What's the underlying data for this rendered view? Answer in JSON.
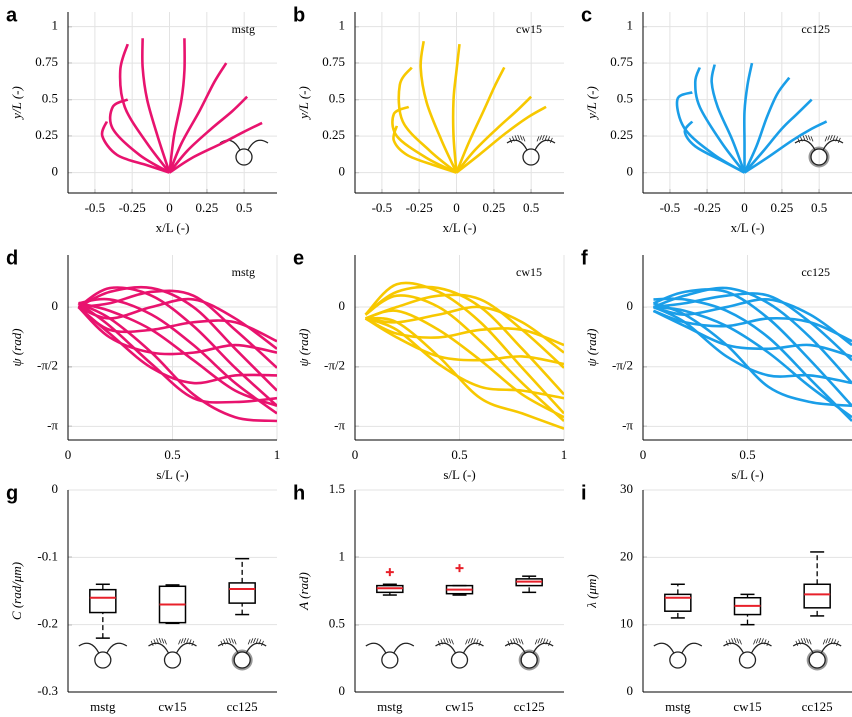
{
  "chart_data": [
    {
      "type": "line",
      "panel_label": "a",
      "annotation": "mstg",
      "xlabel": "x/L (-)",
      "ylabel": "y/L (-)",
      "color": "#e8136e",
      "xlim": [
        -0.68,
        0.72
      ],
      "ylim": [
        -0.14,
        1.1
      ],
      "xticks": [
        -0.5,
        -0.25,
        0,
        0.25,
        0.5
      ],
      "yticks": [
        0,
        0.25,
        0.5,
        0.75,
        1
      ],
      "grid": true,
      "series": [
        {
          "x": [
            0,
            -0.2,
            -0.38,
            -0.38,
            -0.28
          ],
          "values": [
            0,
            0.12,
            0.3,
            0.45,
            0.5
          ]
        },
        {
          "x": [
            0,
            -0.15,
            -0.3,
            -0.33,
            -0.28
          ],
          "values": [
            0,
            0.2,
            0.45,
            0.7,
            0.88
          ]
        },
        {
          "x": [
            0,
            -0.08,
            -0.15,
            -0.18,
            -0.18
          ],
          "values": [
            0,
            0.25,
            0.5,
            0.72,
            0.92
          ]
        },
        {
          "x": [
            0,
            0.03,
            0.08,
            0.1,
            0.1
          ],
          "values": [
            0,
            0.25,
            0.5,
            0.7,
            0.92
          ]
        },
        {
          "x": [
            0,
            0.08,
            0.2,
            0.3,
            0.38
          ],
          "values": [
            0,
            0.2,
            0.42,
            0.62,
            0.75
          ]
        },
        {
          "x": [
            0,
            0.12,
            0.28,
            0.42,
            0.52
          ],
          "values": [
            0,
            0.15,
            0.3,
            0.42,
            0.52
          ]
        },
        {
          "x": [
            0,
            0.15,
            0.35,
            0.5,
            0.62
          ],
          "values": [
            0,
            0.1,
            0.2,
            0.28,
            0.34
          ]
        },
        {
          "x": [
            0,
            -0.15,
            -0.35,
            -0.45,
            -0.42
          ],
          "values": [
            0,
            0.05,
            0.12,
            0.25,
            0.35
          ]
        }
      ]
    },
    {
      "type": "line",
      "panel_label": "b",
      "annotation": "cw15",
      "xlabel": "x/L (-)",
      "ylabel": "y/L (-)",
      "color": "#f7c800",
      "xlim": [
        -0.68,
        0.72
      ],
      "ylim": [
        -0.14,
        1.1
      ],
      "xticks": [
        -0.5,
        -0.25,
        0,
        0.25,
        0.5
      ],
      "yticks": [
        0,
        0.25,
        0.5,
        0.75,
        1
      ],
      "grid": true,
      "series": [
        {
          "x": [
            0,
            -0.2,
            -0.4,
            -0.42,
            -0.32
          ],
          "values": [
            0,
            0.1,
            0.25,
            0.4,
            0.45
          ]
        },
        {
          "x": [
            0,
            -0.18,
            -0.36,
            -0.38,
            -0.3
          ],
          "values": [
            0,
            0.15,
            0.35,
            0.6,
            0.72
          ]
        },
        {
          "x": [
            0,
            -0.1,
            -0.2,
            -0.24,
            -0.22
          ],
          "values": [
            0,
            0.22,
            0.48,
            0.72,
            0.9
          ]
        },
        {
          "x": [
            0,
            -0.02,
            -0.02,
            0,
            0.02
          ],
          "values": [
            0,
            0.25,
            0.5,
            0.7,
            0.88
          ]
        },
        {
          "x": [
            0,
            0.08,
            0.18,
            0.26,
            0.32
          ],
          "values": [
            0,
            0.2,
            0.42,
            0.6,
            0.72
          ]
        },
        {
          "x": [
            0,
            0.12,
            0.27,
            0.4,
            0.5
          ],
          "values": [
            0,
            0.15,
            0.3,
            0.42,
            0.52
          ]
        },
        {
          "x": [
            0,
            0.15,
            0.33,
            0.48,
            0.6
          ],
          "values": [
            0,
            0.12,
            0.27,
            0.38,
            0.45
          ]
        },
        {
          "x": [
            0,
            -0.15,
            -0.33,
            -0.42,
            -0.4
          ],
          "values": [
            0,
            0.05,
            0.12,
            0.22,
            0.32
          ]
        }
      ]
    },
    {
      "type": "line",
      "panel_label": "c",
      "annotation": "cc125",
      "xlabel": "x/L (-)",
      "ylabel": "y/L (-)",
      "color": "#1a9ee8",
      "xlim": [
        -0.68,
        0.72
      ],
      "ylim": [
        -0.14,
        1.1
      ],
      "xticks": [
        -0.5,
        -0.25,
        0,
        0.25,
        0.5
      ],
      "yticks": [
        0,
        0.25,
        0.5,
        0.75,
        1
      ],
      "grid": true,
      "series": [
        {
          "x": [
            0,
            -0.2,
            -0.4,
            -0.45,
            -0.35
          ],
          "values": [
            0,
            0.12,
            0.3,
            0.5,
            0.55
          ]
        },
        {
          "x": [
            0,
            -0.15,
            -0.3,
            -0.33,
            -0.3
          ],
          "values": [
            0,
            0.2,
            0.45,
            0.62,
            0.72
          ]
        },
        {
          "x": [
            0,
            -0.08,
            -0.18,
            -0.22,
            -0.2
          ],
          "values": [
            0,
            0.22,
            0.45,
            0.62,
            0.74
          ]
        },
        {
          "x": [
            0,
            0,
            0,
            0.02,
            0.05
          ],
          "values": [
            0,
            0.2,
            0.42,
            0.6,
            0.75
          ]
        },
        {
          "x": [
            0,
            0.08,
            0.15,
            0.22,
            0.3
          ],
          "values": [
            0,
            0.18,
            0.38,
            0.54,
            0.65
          ]
        },
        {
          "x": [
            0,
            0.12,
            0.25,
            0.35,
            0.45
          ],
          "values": [
            0,
            0.14,
            0.3,
            0.4,
            0.5
          ]
        },
        {
          "x": [
            0,
            0.15,
            0.32,
            0.45,
            0.55
          ],
          "values": [
            0,
            0.1,
            0.22,
            0.3,
            0.35
          ]
        },
        {
          "x": [
            0,
            -0.15,
            -0.33,
            -0.4,
            -0.35
          ],
          "values": [
            0,
            0.08,
            0.18,
            0.28,
            0.35
          ]
        }
      ]
    },
    {
      "type": "line",
      "panel_label": "d",
      "annotation": "mstg",
      "xlabel": "s/L (-)",
      "ylabel": "ψ (rad)",
      "color": "#e8136e",
      "xlim": [
        0,
        1
      ],
      "ylim": [
        -3.5,
        1.37
      ],
      "xticks": [
        0,
        0.5,
        1
      ],
      "yticks": [
        {
          "value": -3.1416,
          "label": "-π"
        },
        {
          "value": -1.5708,
          "label": "-π/2"
        },
        0
      ],
      "grid": true,
      "x": [
        0.05,
        0.2,
        0.4,
        0.6,
        0.8,
        1
      ],
      "series": [
        {
          "values": [
            0.1,
            -0.1,
            -0.6,
            -1.4,
            -2.2,
            -2.6
          ]
        },
        {
          "values": [
            0.1,
            0.2,
            -0.2,
            -1.0,
            -2.0,
            -2.8
          ]
        },
        {
          "values": [
            0,
            0.5,
            0.3,
            -0.5,
            -1.6,
            -2.6
          ]
        },
        {
          "values": [
            0,
            0.4,
            0.5,
            0,
            -1.1,
            -2.2
          ]
        },
        {
          "values": [
            0,
            0.1,
            0.4,
            0.3,
            -0.6,
            -1.6
          ]
        },
        {
          "values": [
            0,
            -0.3,
            0,
            0.2,
            -0.3,
            -1.1
          ]
        },
        {
          "values": [
            0,
            -0.6,
            -0.6,
            -0.4,
            -0.4,
            -0.9
          ]
        },
        {
          "values": [
            0,
            -0.8,
            -1.2,
            -1.2,
            -1.0,
            -1.2
          ]
        },
        {
          "values": [
            0,
            -0.7,
            -1.6,
            -2.0,
            -1.8,
            -1.8
          ]
        },
        {
          "values": [
            0.1,
            -0.5,
            -1.5,
            -2.4,
            -2.5,
            -2.4
          ]
        },
        {
          "values": [
            0.1,
            -0.3,
            -1.2,
            -2.3,
            -2.9,
            -3.0
          ]
        }
      ]
    },
    {
      "type": "line",
      "panel_label": "e",
      "annotation": "cw15",
      "xlabel": "s/L (-)",
      "ylabel": "ψ (rad)",
      "color": "#f7c800",
      "xlim": [
        0,
        1
      ],
      "ylim": [
        -3.5,
        1.37
      ],
      "xticks": [
        0,
        0.5,
        1
      ],
      "yticks": [
        {
          "value": -3.1416,
          "label": "-π"
        },
        {
          "value": -1.5708,
          "label": "-π/2"
        },
        0
      ],
      "grid": true,
      "x": [
        0.05,
        0.2,
        0.4,
        0.6,
        0.8,
        1
      ],
      "series": [
        {
          "values": [
            -0.3,
            -0.1,
            -0.6,
            -1.4,
            -2.3,
            -2.9
          ]
        },
        {
          "values": [
            -0.2,
            0.3,
            0,
            -0.9,
            -2.0,
            -3.0
          ]
        },
        {
          "values": [
            -0.2,
            0.6,
            0.4,
            -0.4,
            -1.6,
            -2.8
          ]
        },
        {
          "values": [
            -0.2,
            0.4,
            0.5,
            0,
            -1.1,
            -2.3
          ]
        },
        {
          "values": [
            -0.3,
            0,
            0.3,
            0.2,
            -0.6,
            -1.6
          ]
        },
        {
          "values": [
            -0.3,
            -0.4,
            -0.2,
            0,
            -0.4,
            -1.2
          ]
        },
        {
          "values": [
            -0.3,
            -0.7,
            -0.8,
            -0.6,
            -0.6,
            -1.0
          ]
        },
        {
          "values": [
            -0.3,
            -0.8,
            -1.3,
            -1.4,
            -1.3,
            -1.5
          ]
        },
        {
          "values": [
            -0.3,
            -0.6,
            -1.5,
            -2.1,
            -2.2,
            -2.4
          ]
        },
        {
          "values": [
            -0.3,
            -0.4,
            -1.3,
            -2.4,
            -2.8,
            -3.2
          ]
        }
      ]
    },
    {
      "type": "line",
      "panel_label": "f",
      "annotation": "cc125",
      "xlabel": "s/L (-)",
      "ylabel": "ψ (rad)",
      "color": "#1a9ee8",
      "xlim": [
        0,
        1
      ],
      "ylim": [
        -3.5,
        1.37
      ],
      "xticks": [
        0,
        0.5
      ],
      "yticks": [
        {
          "value": -3.1416,
          "label": "-π"
        },
        {
          "value": -1.5708,
          "label": "-π/2"
        },
        0
      ],
      "grid": true,
      "x": [
        0.05,
        0.2,
        0.4,
        0.6,
        0.8,
        1
      ],
      "series": [
        {
          "values": [
            0,
            -0.1,
            -0.5,
            -1.2,
            -2.1,
            -2.9
          ]
        },
        {
          "values": [
            0.2,
            0.2,
            -0.1,
            -0.8,
            -1.9,
            -3.0
          ]
        },
        {
          "values": [
            0.1,
            0.4,
            0.4,
            -0.3,
            -1.4,
            -2.6
          ]
        },
        {
          "values": [
            0,
            0.3,
            0.5,
            0.1,
            -0.8,
            -2.0
          ]
        },
        {
          "values": [
            0,
            0.1,
            0.3,
            0.3,
            -0.4,
            -1.4
          ]
        },
        {
          "values": [
            0,
            -0.2,
            0,
            0.2,
            -0.2,
            -1.0
          ]
        },
        {
          "values": [
            -0.1,
            -0.4,
            -0.5,
            -0.3,
            -0.4,
            -0.9
          ]
        },
        {
          "values": [
            -0.1,
            -0.5,
            -1.0,
            -1.1,
            -1.0,
            -1.3
          ]
        },
        {
          "values": [
            0,
            -0.4,
            -1.3,
            -1.8,
            -1.8,
            -2.0
          ]
        },
        {
          "values": [
            0.1,
            -0.2,
            -1.0,
            -2.1,
            -2.5,
            -2.6
          ]
        }
      ]
    },
    {
      "type": "box",
      "panel_label": "g",
      "ylabel": "C (rad/μm)",
      "color": "#000000",
      "median_color": "#e8202a",
      "ylim": [
        -0.3,
        0
      ],
      "yticks": [
        -0.3,
        -0.2,
        -0.1,
        0
      ],
      "grid": true,
      "categories": [
        "mstg",
        "cw15",
        "cc125"
      ],
      "boxes": [
        {
          "whislo": -0.22,
          "q1": -0.182,
          "med": -0.16,
          "q3": -0.148,
          "whishi": -0.14
        },
        {
          "whislo": -0.198,
          "q1": -0.197,
          "med": -0.17,
          "q3": -0.143,
          "whishi": -0.141
        },
        {
          "whislo": -0.185,
          "q1": -0.168,
          "med": -0.147,
          "q3": -0.138,
          "whishi": -0.102
        }
      ]
    },
    {
      "type": "box",
      "panel_label": "h",
      "ylabel": "A (rad)",
      "color": "#000000",
      "median_color": "#e8202a",
      "ylim": [
        0,
        1.5
      ],
      "yticks": [
        0,
        0.5,
        1,
        1.5
      ],
      "grid": true,
      "categories": [
        "mstg",
        "cw15",
        "cc125"
      ],
      "boxes": [
        {
          "whislo": 0.72,
          "q1": 0.74,
          "med": 0.77,
          "q3": 0.79,
          "whishi": 0.8,
          "fliers": [
            0.89
          ]
        },
        {
          "whislo": 0.72,
          "q1": 0.73,
          "med": 0.76,
          "q3": 0.79,
          "whishi": 0.79,
          "fliers": [
            0.92
          ]
        },
        {
          "whislo": 0.74,
          "q1": 0.79,
          "med": 0.82,
          "q3": 0.84,
          "whishi": 0.86
        }
      ]
    },
    {
      "type": "box",
      "panel_label": "i",
      "ylabel": "λ (μm)",
      "color": "#000000",
      "median_color": "#e8202a",
      "ylim": [
        0,
        30
      ],
      "yticks": [
        0,
        10,
        20,
        30
      ],
      "grid": true,
      "categories": [
        "mstg",
        "cw15",
        "cc125"
      ],
      "boxes": [
        {
          "whislo": 11,
          "q1": 12,
          "med": 14,
          "q3": 14.5,
          "whishi": 16
        },
        {
          "whislo": 10,
          "q1": 11.5,
          "med": 12.8,
          "q3": 14,
          "whishi": 14.5
        },
        {
          "whislo": 11.3,
          "q1": 12.5,
          "med": 14.5,
          "q3": 16,
          "whishi": 20.8
        }
      ]
    }
  ]
}
